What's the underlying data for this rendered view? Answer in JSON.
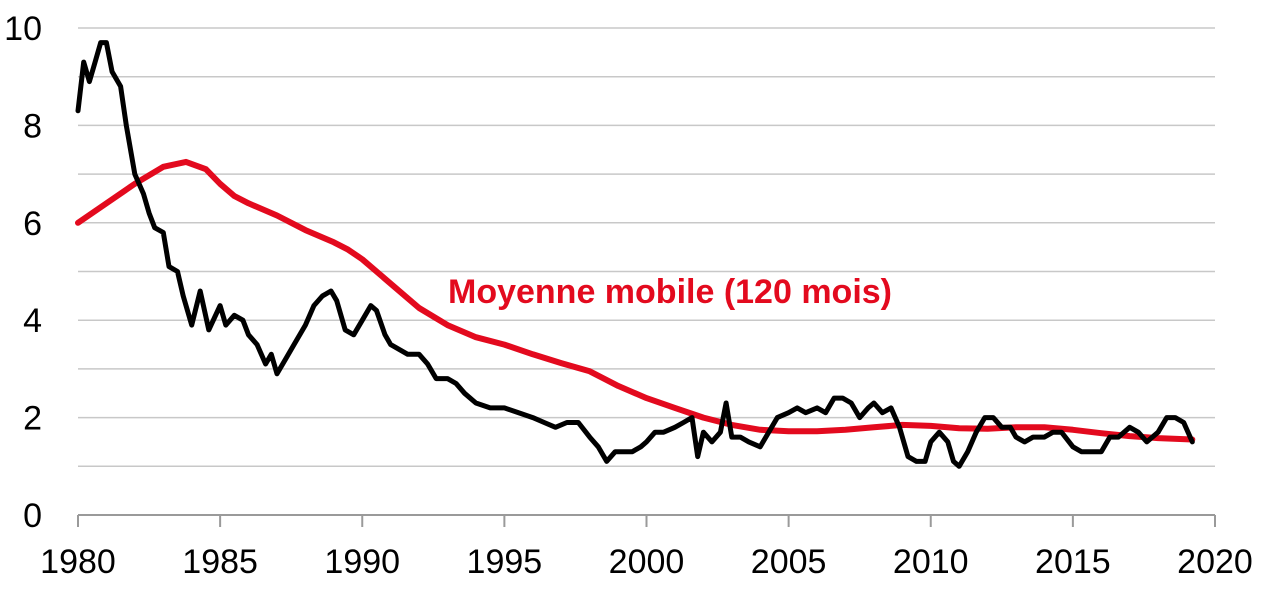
{
  "chart_data": {
    "type": "line",
    "title": "",
    "xlabel": "",
    "ylabel": "",
    "xlim": [
      1980,
      2020
    ],
    "ylim": [
      0,
      10
    ],
    "x_ticks": [
      "1980",
      "1985",
      "1990",
      "1995",
      "2000",
      "2005",
      "2010",
      "2015",
      "2020"
    ],
    "y_ticks": [
      "0",
      "2",
      "4",
      "6",
      "8",
      "10"
    ],
    "grid": "horizontal",
    "annotations": [
      {
        "text": "Moyenne mobile (120 mois)",
        "color": "#e30a1e"
      }
    ],
    "series": [
      {
        "color": "#000000",
        "points": [
          [
            1980.0,
            8.3
          ],
          [
            1980.2,
            9.3
          ],
          [
            1980.4,
            8.9
          ],
          [
            1980.6,
            9.3
          ],
          [
            1980.8,
            9.7
          ],
          [
            1981.0,
            9.7
          ],
          [
            1981.2,
            9.1
          ],
          [
            1981.5,
            8.8
          ],
          [
            1981.7,
            8.0
          ],
          [
            1982.0,
            7.0
          ],
          [
            1982.3,
            6.6
          ],
          [
            1982.5,
            6.2
          ],
          [
            1982.7,
            5.9
          ],
          [
            1983.0,
            5.8
          ],
          [
            1983.2,
            5.1
          ],
          [
            1983.5,
            5.0
          ],
          [
            1983.7,
            4.5
          ],
          [
            1984.0,
            3.9
          ],
          [
            1984.3,
            4.6
          ],
          [
            1984.6,
            3.8
          ],
          [
            1985.0,
            4.3
          ],
          [
            1985.2,
            3.9
          ],
          [
            1985.5,
            4.1
          ],
          [
            1985.8,
            4.0
          ],
          [
            1986.0,
            3.7
          ],
          [
            1986.3,
            3.5
          ],
          [
            1986.6,
            3.1
          ],
          [
            1986.8,
            3.3
          ],
          [
            1987.0,
            2.9
          ],
          [
            1987.3,
            3.2
          ],
          [
            1987.6,
            3.5
          ],
          [
            1988.0,
            3.9
          ],
          [
            1988.3,
            4.3
          ],
          [
            1988.6,
            4.5
          ],
          [
            1988.9,
            4.6
          ],
          [
            1989.1,
            4.4
          ],
          [
            1989.4,
            3.8
          ],
          [
            1989.7,
            3.7
          ],
          [
            1990.0,
            4.0
          ],
          [
            1990.3,
            4.3
          ],
          [
            1990.5,
            4.2
          ],
          [
            1990.8,
            3.7
          ],
          [
            1991.0,
            3.5
          ],
          [
            1991.3,
            3.4
          ],
          [
            1991.6,
            3.3
          ],
          [
            1992.0,
            3.3
          ],
          [
            1992.3,
            3.1
          ],
          [
            1992.6,
            2.8
          ],
          [
            1993.0,
            2.8
          ],
          [
            1993.3,
            2.7
          ],
          [
            1993.6,
            2.5
          ],
          [
            1994.0,
            2.3
          ],
          [
            1994.5,
            2.2
          ],
          [
            1995.0,
            2.2
          ],
          [
            1995.5,
            2.1
          ],
          [
            1996.0,
            2.0
          ],
          [
            1996.4,
            1.9
          ],
          [
            1996.8,
            1.8
          ],
          [
            1997.2,
            1.9
          ],
          [
            1997.6,
            1.9
          ],
          [
            1998.0,
            1.6
          ],
          [
            1998.3,
            1.4
          ],
          [
            1998.6,
            1.1
          ],
          [
            1998.9,
            1.3
          ],
          [
            1999.2,
            1.3
          ],
          [
            1999.5,
            1.3
          ],
          [
            1999.8,
            1.4
          ],
          [
            2000.0,
            1.5
          ],
          [
            2000.3,
            1.7
          ],
          [
            2000.6,
            1.7
          ],
          [
            2001.0,
            1.8
          ],
          [
            2001.3,
            1.9
          ],
          [
            2001.6,
            2.0
          ],
          [
            2001.8,
            1.2
          ],
          [
            2002.0,
            1.7
          ],
          [
            2002.3,
            1.5
          ],
          [
            2002.6,
            1.7
          ],
          [
            2002.8,
            2.3
          ],
          [
            2003.0,
            1.6
          ],
          [
            2003.3,
            1.6
          ],
          [
            2003.6,
            1.5
          ],
          [
            2004.0,
            1.4
          ],
          [
            2004.3,
            1.7
          ],
          [
            2004.6,
            2.0
          ],
          [
            2005.0,
            2.1
          ],
          [
            2005.3,
            2.2
          ],
          [
            2005.6,
            2.1
          ],
          [
            2006.0,
            2.2
          ],
          [
            2006.3,
            2.1
          ],
          [
            2006.6,
            2.4
          ],
          [
            2006.9,
            2.4
          ],
          [
            2007.2,
            2.3
          ],
          [
            2007.5,
            2.0
          ],
          [
            2007.8,
            2.2
          ],
          [
            2008.0,
            2.3
          ],
          [
            2008.3,
            2.1
          ],
          [
            2008.6,
            2.2
          ],
          [
            2008.9,
            1.8
          ],
          [
            2009.2,
            1.2
          ],
          [
            2009.5,
            1.1
          ],
          [
            2009.8,
            1.1
          ],
          [
            2010.0,
            1.5
          ],
          [
            2010.3,
            1.7
          ],
          [
            2010.6,
            1.5
          ],
          [
            2010.8,
            1.1
          ],
          [
            2011.0,
            1.0
          ],
          [
            2011.3,
            1.3
          ],
          [
            2011.6,
            1.7
          ],
          [
            2011.9,
            2.0
          ],
          [
            2012.2,
            2.0
          ],
          [
            2012.5,
            1.8
          ],
          [
            2012.8,
            1.8
          ],
          [
            2013.0,
            1.6
          ],
          [
            2013.3,
            1.5
          ],
          [
            2013.6,
            1.6
          ],
          [
            2014.0,
            1.6
          ],
          [
            2014.3,
            1.7
          ],
          [
            2014.6,
            1.7
          ],
          [
            2015.0,
            1.4
          ],
          [
            2015.3,
            1.3
          ],
          [
            2015.6,
            1.3
          ],
          [
            2016.0,
            1.3
          ],
          [
            2016.3,
            1.6
          ],
          [
            2016.6,
            1.6
          ],
          [
            2017.0,
            1.8
          ],
          [
            2017.3,
            1.7
          ],
          [
            2017.6,
            1.5
          ],
          [
            2018.0,
            1.7
          ],
          [
            2018.3,
            2.0
          ],
          [
            2018.6,
            2.0
          ],
          [
            2018.9,
            1.9
          ],
          [
            2019.2,
            1.5
          ]
        ]
      },
      {
        "color": "#e30a1e",
        "points": [
          [
            1980.0,
            6.0
          ],
          [
            1981.0,
            6.4
          ],
          [
            1982.0,
            6.8
          ],
          [
            1983.0,
            7.15
          ],
          [
            1983.8,
            7.25
          ],
          [
            1984.5,
            7.1
          ],
          [
            1985.0,
            6.8
          ],
          [
            1985.5,
            6.55
          ],
          [
            1986.0,
            6.4
          ],
          [
            1987.0,
            6.15
          ],
          [
            1988.0,
            5.85
          ],
          [
            1989.0,
            5.6
          ],
          [
            1989.5,
            5.45
          ],
          [
            1990.0,
            5.25
          ],
          [
            1991.0,
            4.75
          ],
          [
            1992.0,
            4.25
          ],
          [
            1993.0,
            3.9
          ],
          [
            1994.0,
            3.65
          ],
          [
            1995.0,
            3.5
          ],
          [
            1996.0,
            3.3
          ],
          [
            1997.0,
            3.12
          ],
          [
            1998.0,
            2.95
          ],
          [
            1999.0,
            2.65
          ],
          [
            2000.0,
            2.4
          ],
          [
            2001.0,
            2.2
          ],
          [
            2002.0,
            2.0
          ],
          [
            2003.0,
            1.85
          ],
          [
            2004.0,
            1.75
          ],
          [
            2005.0,
            1.72
          ],
          [
            2006.0,
            1.72
          ],
          [
            2007.0,
            1.75
          ],
          [
            2008.0,
            1.8
          ],
          [
            2009.0,
            1.85
          ],
          [
            2010.0,
            1.83
          ],
          [
            2011.0,
            1.78
          ],
          [
            2012.0,
            1.77
          ],
          [
            2013.0,
            1.8
          ],
          [
            2014.0,
            1.8
          ],
          [
            2015.0,
            1.75
          ],
          [
            2016.0,
            1.68
          ],
          [
            2017.0,
            1.62
          ],
          [
            2018.0,
            1.58
          ],
          [
            2019.2,
            1.55
          ]
        ]
      }
    ]
  }
}
